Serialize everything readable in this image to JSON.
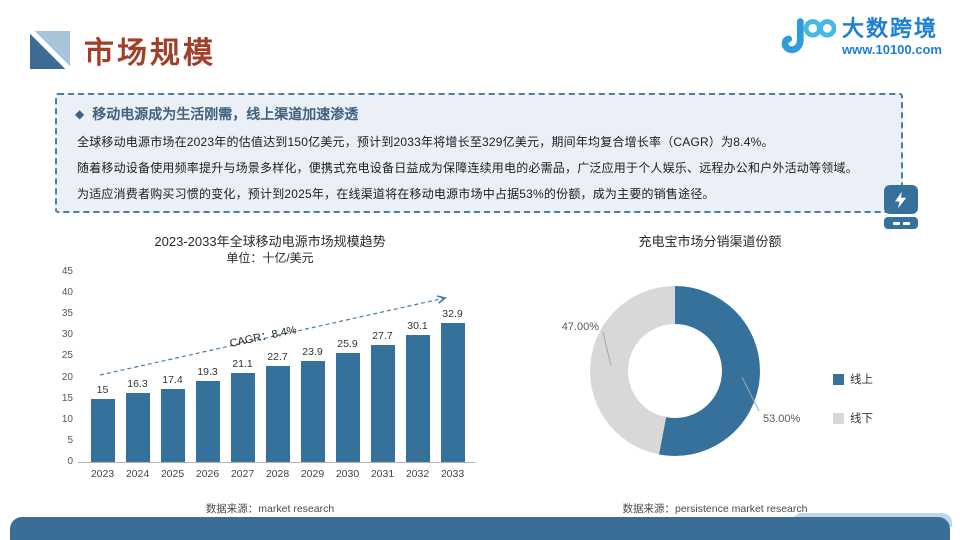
{
  "colors": {
    "accent_red": "#A23F2B",
    "brand_blue": "#1F7FD0",
    "brand_light_blue": "#35A8DD",
    "bar_blue": "#36719C",
    "slice_gray": "#D8D8D8",
    "box_bg": "#EAF0F6",
    "box_border": "#4C7FA5",
    "heading_blue": "#41617F",
    "footer_bar": "#3A6E96"
  },
  "header": {
    "title": "市场规模",
    "logo_name": "大数跨境",
    "logo_url": "www.10100.com"
  },
  "summary": {
    "bullet": "◆",
    "heading": "移动电源成为生活刚需，线上渠道加速渗透",
    "paragraphs": [
      "全球移动电源市场在2023年的估值达到150亿美元，预计到2033年将增长至329亿美元，期间年均复合增长率（CAGR）为8.4%。",
      "随着移动设备使用频率提升与场景多样化，便携式充电设备日益成为保障连续用电的必需品，广泛应用于个人娱乐、远程办公和户外活动等领域。",
      "为适应消费者购买习惯的变化，预计到2025年，在线渠道将在移动电源市场中占据53%的份额，成为主要的销售途径。"
    ]
  },
  "chart_data": [
    {
      "type": "bar",
      "title": "2023-2033年全球移动电源市场规模趋势",
      "subtitle": "单位：十亿/美元",
      "categories": [
        "2023",
        "2024",
        "2025",
        "2026",
        "2027",
        "2028",
        "2029",
        "2030",
        "2031",
        "2032",
        "2033"
      ],
      "values": [
        15,
        16.3,
        17.4,
        19.3,
        21.1,
        22.7,
        23.9,
        25.9,
        27.7,
        30.1,
        32.9
      ],
      "labels": [
        "15",
        "16.3",
        "17.4",
        "19.3",
        "21.1",
        "22.7",
        "23.9",
        "25.9",
        "27.7",
        "30.1",
        "32.9"
      ],
      "xlabel": "",
      "ylabel": "",
      "ylim": [
        0,
        45
      ],
      "ytick_step": 5,
      "grid": false,
      "annotation": "CAGR：8.4%",
      "source": "数据来源：market research"
    },
    {
      "type": "pie",
      "donut": true,
      "title": "充电宝市场分销渠道份额",
      "slices": [
        {
          "label": "线上",
          "value": 53,
          "display": "53.00%",
          "color": "#36719C"
        },
        {
          "label": "线下",
          "value": 47,
          "display": "47.00%",
          "color": "#D8D8D8"
        }
      ],
      "legend_position": "right",
      "source": "数据来源：persistence market research"
    }
  ]
}
